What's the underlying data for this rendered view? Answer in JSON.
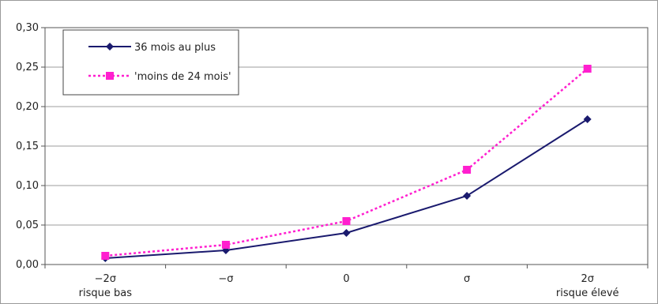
{
  "chart_data": {
    "type": "line",
    "categories": [
      "−2σ",
      "−σ",
      "0",
      "σ",
      "2σ"
    ],
    "category_sublabels": [
      "risque bas",
      "",
      "",
      "",
      "risque élevé"
    ],
    "ylim": [
      0.0,
      0.3
    ],
    "yticks": [
      "0,00",
      "0,05",
      "0,10",
      "0,15",
      "0,20",
      "0,25",
      "0,30"
    ],
    "grid": "horizontal",
    "legend_position": "top-left",
    "series": [
      {
        "name": "36 mois au plus",
        "values": [
          0.008,
          0.018,
          0.04,
          0.087,
          0.184
        ],
        "color": "#1a1a6e",
        "marker": "diamond",
        "line_style": "solid"
      },
      {
        "name": "'moins de 24 mois'",
        "values": [
          0.011,
          0.025,
          0.055,
          0.12,
          0.248
        ],
        "color": "#ff1fcf",
        "marker": "square",
        "line_style": "dotted"
      }
    ]
  }
}
